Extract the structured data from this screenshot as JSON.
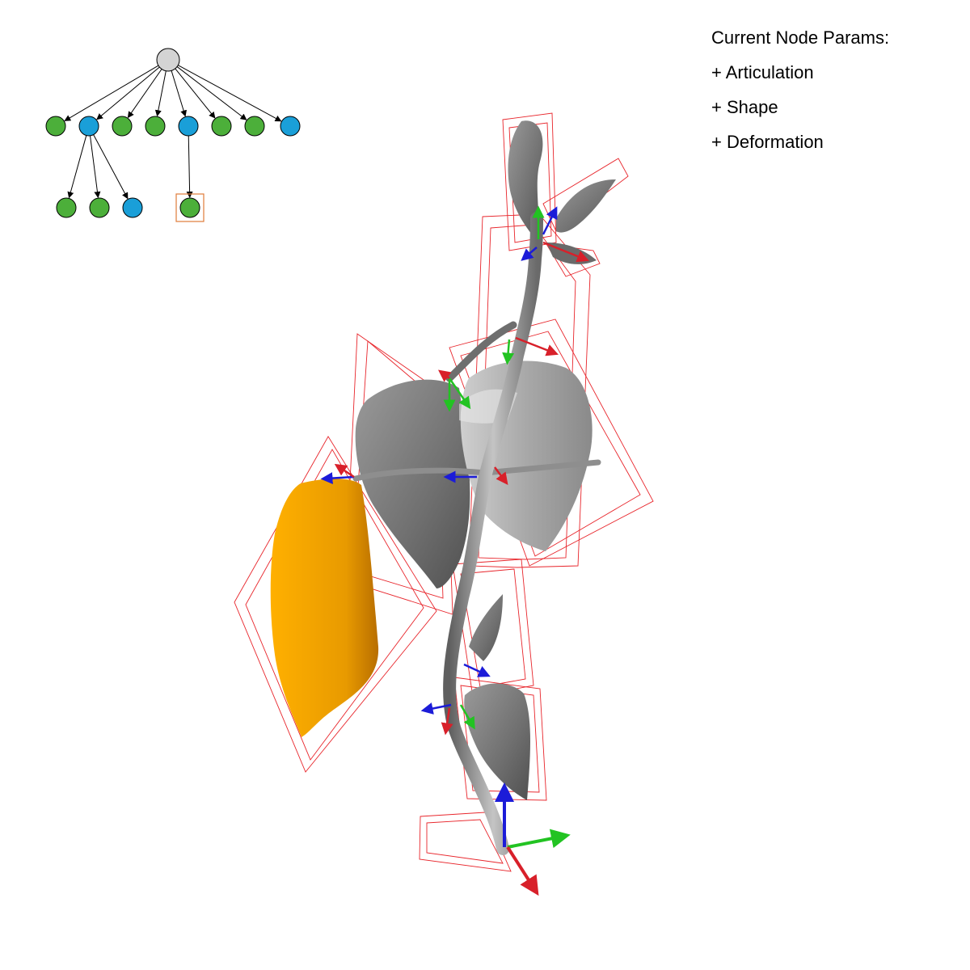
{
  "params_panel": {
    "title": "Current Node Params:",
    "items": [
      "+ Articulation",
      "+ Shape",
      "+ Deformation"
    ]
  },
  "node_tree": {
    "colors": {
      "root": "#d4d4d4",
      "leaf": "#4caf3a",
      "branch": "#1a9fd8",
      "selection": "#e07b3a"
    },
    "root": {
      "type": "root"
    },
    "level1": [
      {
        "type": "leaf"
      },
      {
        "type": "branch"
      },
      {
        "type": "leaf"
      },
      {
        "type": "leaf"
      },
      {
        "type": "branch"
      },
      {
        "type": "leaf"
      },
      {
        "type": "leaf"
      },
      {
        "type": "branch"
      }
    ],
    "level2": [
      {
        "parent": 1,
        "type": "leaf"
      },
      {
        "parent": 1,
        "type": "leaf"
      },
      {
        "parent": 1,
        "type": "branch"
      },
      {
        "parent": 4,
        "type": "leaf",
        "selected": true
      }
    ]
  },
  "scene": {
    "colors": {
      "stem": "#8e8e8e",
      "leaf_gray": "#7a7a7a",
      "leaf_light": "#b4b4b4",
      "leaf_selected": "#f0a400",
      "bbox": "#e8252b",
      "axis_x": "#d8202a",
      "axis_y": "#22c322",
      "axis_z": "#1c1cd8"
    }
  }
}
